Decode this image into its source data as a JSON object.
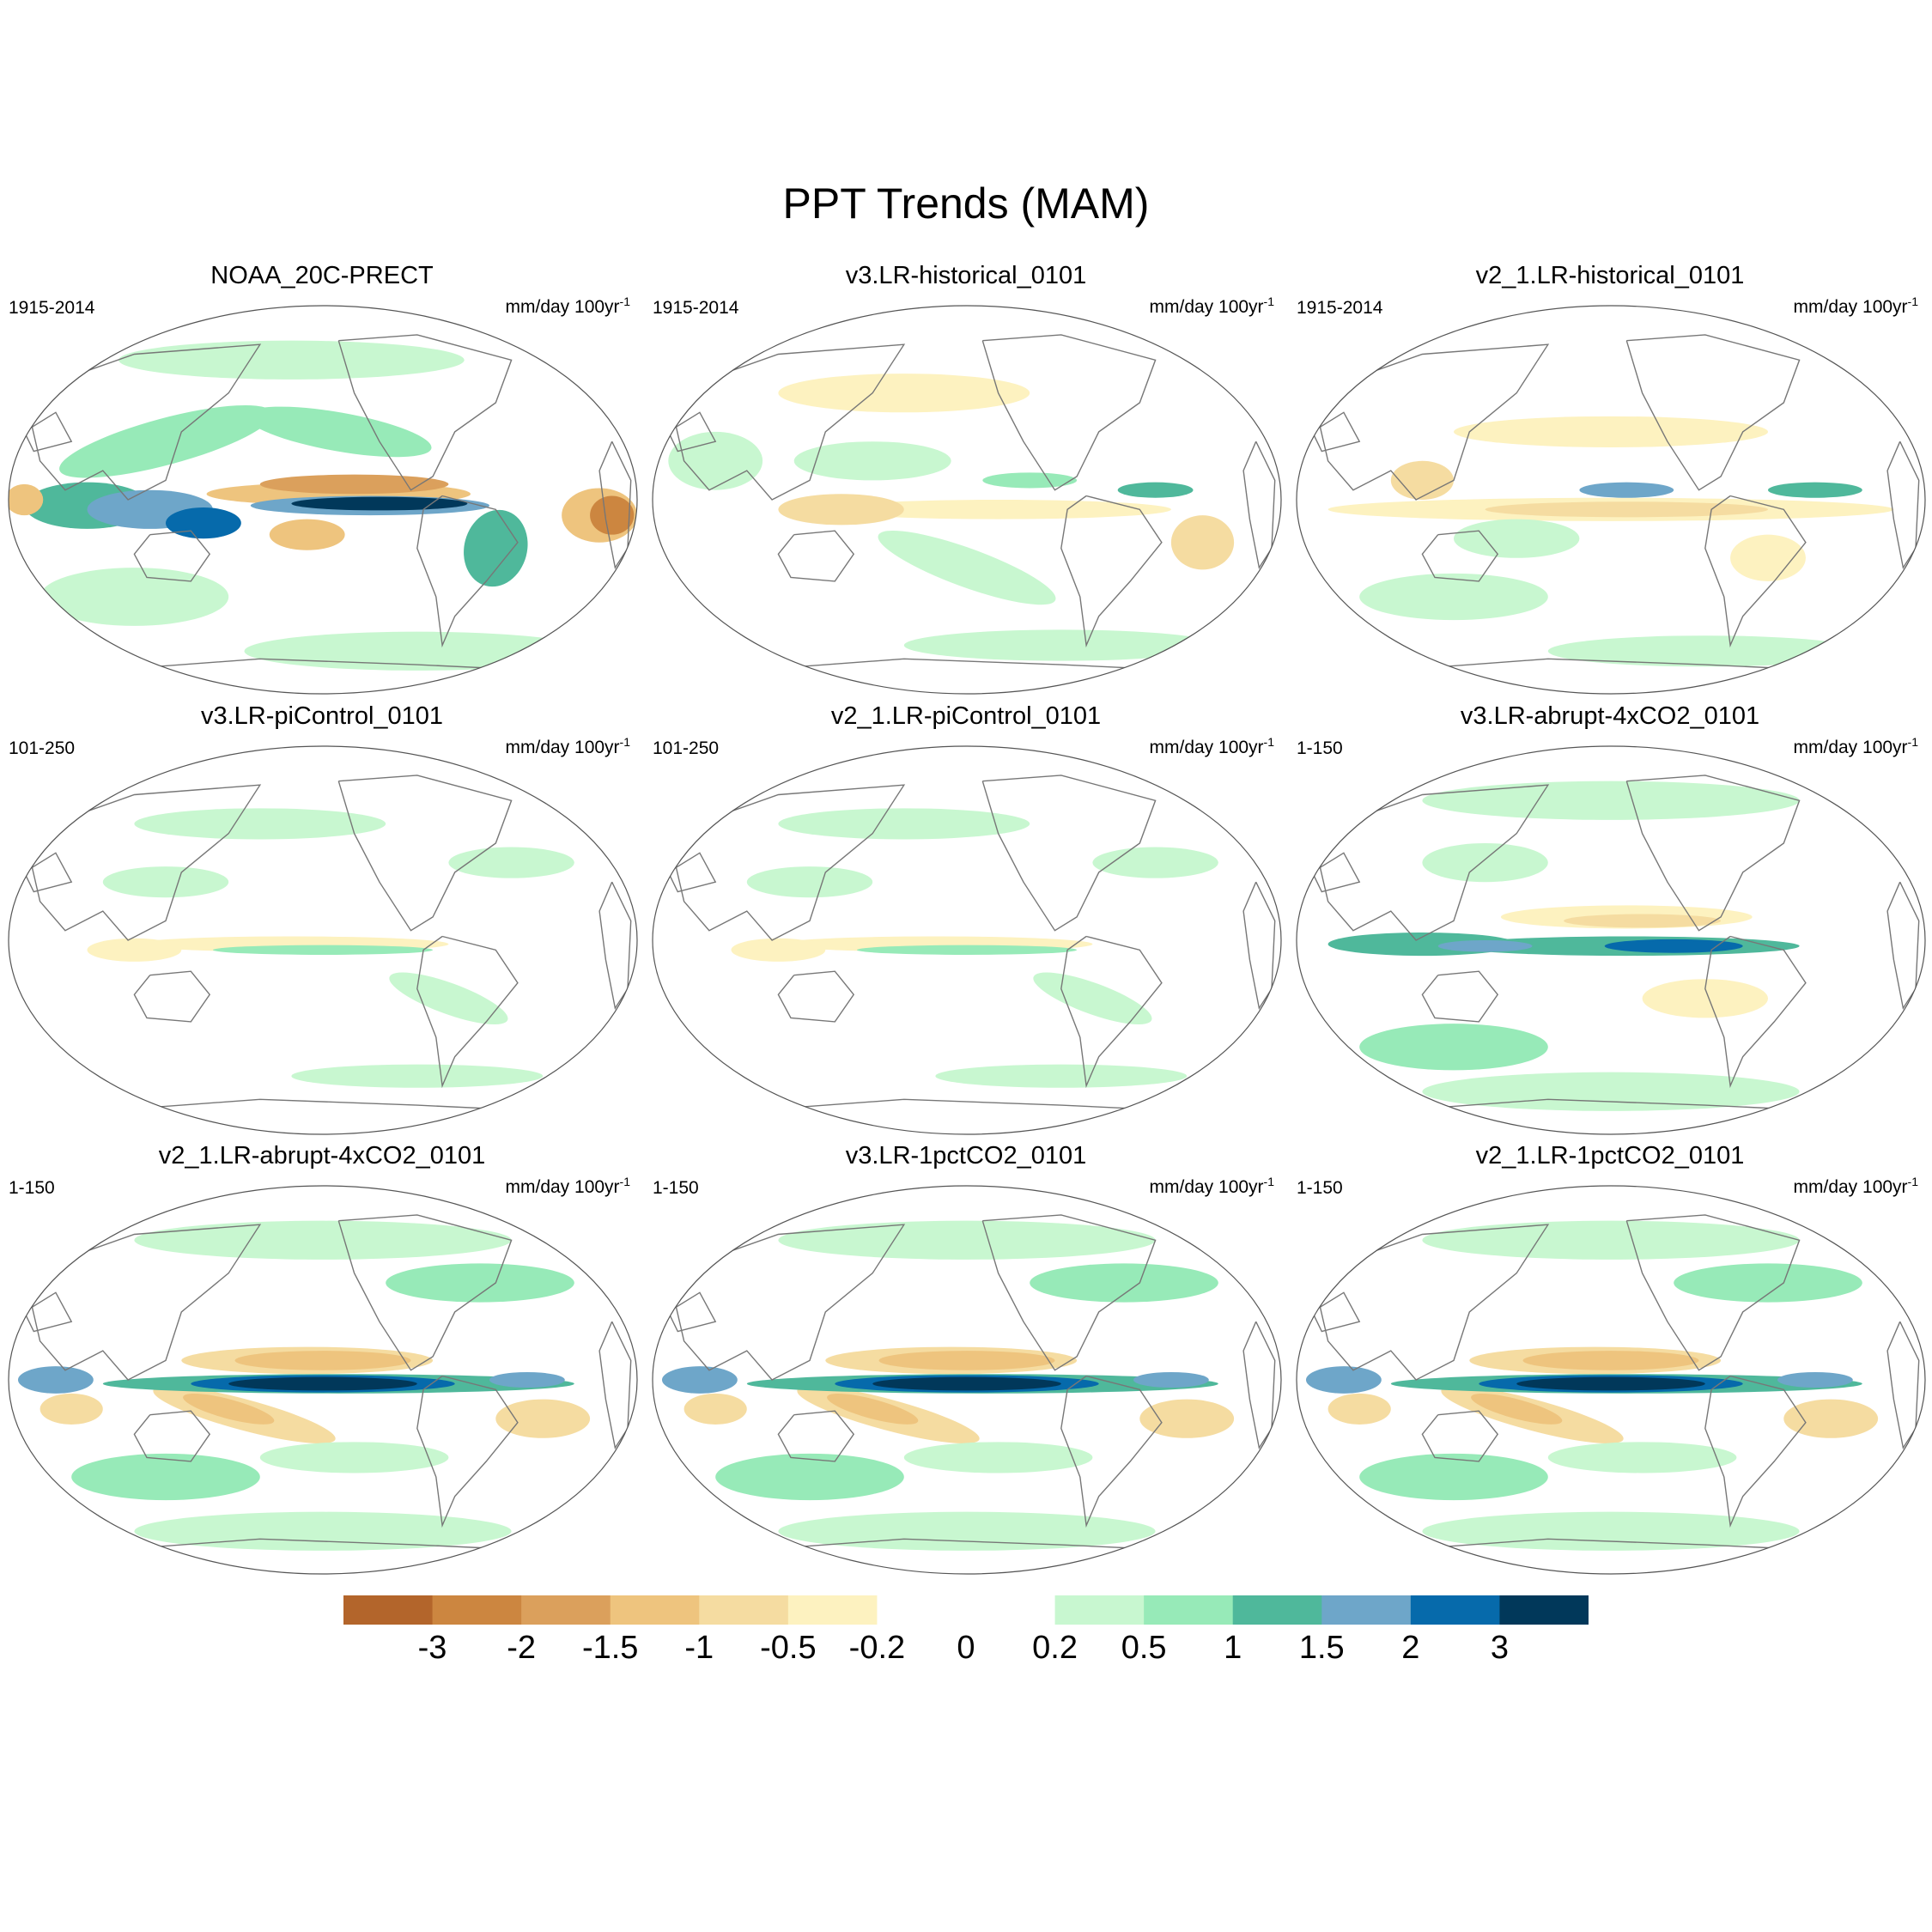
{
  "figure": {
    "title": "PPT Trends (MAM)"
  },
  "panels": [
    {
      "title": "NOAA_20C-PRECT",
      "period": "1915-2014",
      "units_base": "mm/day 100yr",
      "units_exp": "-1",
      "style": "strong-obs"
    },
    {
      "title": "v3.LR-historical_0101",
      "period": "1915-2014",
      "units_base": "mm/day 100yr",
      "units_exp": "-1",
      "style": "mild-mixed"
    },
    {
      "title": "v2_1.LR-historical_0101",
      "period": "1915-2014",
      "units_base": "mm/day 100yr",
      "units_exp": "-1",
      "style": "mild-dry"
    },
    {
      "title": "v3.LR-piControl_0101",
      "period": "101-250",
      "units_base": "mm/day 100yr",
      "units_exp": "-1",
      "style": "weak"
    },
    {
      "title": "v2_1.LR-piControl_0101",
      "period": "101-250",
      "units_base": "mm/day 100yr",
      "units_exp": "-1",
      "style": "weak"
    },
    {
      "title": "v3.LR-abrupt-4xCO2_0101",
      "period": "1-150",
      "units_base": "mm/day 100yr",
      "units_exp": "-1",
      "style": "moderate-wet"
    },
    {
      "title": "v2_1.LR-abrupt-4xCO2_0101",
      "period": "1-150",
      "units_base": "mm/day 100yr",
      "units_exp": "-1",
      "style": "strong-wet"
    },
    {
      "title": "v3.LR-1pctCO2_0101",
      "period": "1-150",
      "units_base": "mm/day 100yr",
      "units_exp": "-1",
      "style": "strong-wet"
    },
    {
      "title": "v2_1.LR-1pctCO2_0101",
      "period": "1-150",
      "units_base": "mm/day 100yr",
      "units_exp": "-1",
      "style": "strong-wet"
    }
  ],
  "colorbar": {
    "levels": [
      "-3",
      "-2",
      "-1.5",
      "-1",
      "-0.5",
      "-0.2",
      "0",
      "0.2",
      "0.5",
      "1",
      "1.5",
      "2",
      "3"
    ],
    "colors": [
      "#b3652b",
      "#cc8640",
      "#dba05c",
      "#eec47e",
      "#f5dca1",
      "#fdf2c0",
      "#ffffff",
      "#ffffff",
      "#c8f7d0",
      "#97eab8",
      "#4fb89b",
      "#6ea6c9",
      "#066aab",
      "#01385a"
    ]
  }
}
